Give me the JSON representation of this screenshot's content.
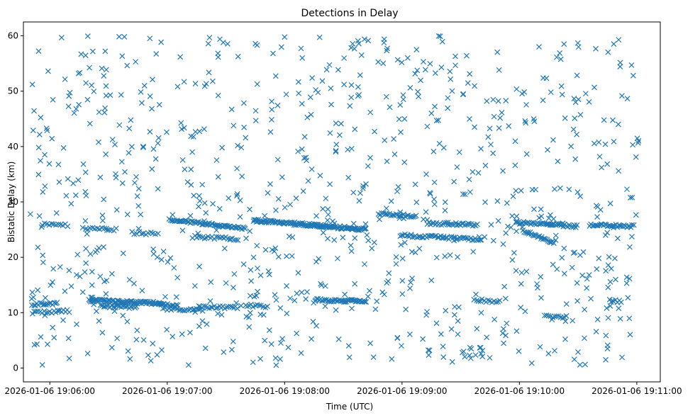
{
  "chart_data": {
    "type": "scatter",
    "title": "Detections in Delay",
    "xlabel": "Time (UTC)",
    "ylabel": "Bistatic Delay (km)",
    "marker": "x",
    "color": "#1f77b4",
    "xaxis_unit": "seconds after 2026-01-06 19:06:00",
    "xlim": [
      -13.5,
      312
    ],
    "ylim": [
      -2.5,
      62.5
    ],
    "x_ticks": [
      {
        "value": 0,
        "label": "2026-01-06 19:06:00"
      },
      {
        "value": 60,
        "label": "2026-01-06 19:07:00"
      },
      {
        "value": 120,
        "label": "2026-01-06 19:08:00"
      },
      {
        "value": 180,
        "label": "2026-01-06 19:09:00"
      },
      {
        "value": 240,
        "label": "2026-01-06 19:10:00"
      },
      {
        "value": 300,
        "label": "2026-01-06 19:11:00"
      }
    ],
    "y_ticks": [
      {
        "value": 0,
        "label": "0"
      },
      {
        "value": 10,
        "label": "10"
      },
      {
        "value": 20,
        "label": "20"
      },
      {
        "value": 30,
        "label": "30"
      },
      {
        "value": 40,
        "label": "40"
      },
      {
        "value": 50,
        "label": "50"
      },
      {
        "value": 60,
        "label": "60"
      }
    ],
    "tracks": [
      {
        "x0": -9,
        "x1": 4,
        "y0": 11.5,
        "y1": 11.7,
        "step": 0.8
      },
      {
        "x0": -9,
        "x1": 10,
        "y0": 10.0,
        "y1": 10.3,
        "step": 1.0
      },
      {
        "x0": -4,
        "x1": 10,
        "y0": 26.0,
        "y1": 25.8,
        "step": 1.2
      },
      {
        "x0": 17,
        "x1": 34,
        "y0": 25.2,
        "y1": 25.0,
        "step": 1.2
      },
      {
        "x0": 20,
        "x1": 57,
        "y0": 12.2,
        "y1": 11.7,
        "step": 0.5
      },
      {
        "x0": 26,
        "x1": 45,
        "y0": 11.2,
        "y1": 11.0,
        "step": 0.8
      },
      {
        "x0": 42,
        "x1": 56,
        "y0": 24.4,
        "y1": 24.3,
        "step": 1.2
      },
      {
        "x0": 56,
        "x1": 66,
        "y0": 11.5,
        "y1": 11.3,
        "step": 0.8
      },
      {
        "x0": 58,
        "x1": 78,
        "y0": 10.7,
        "y1": 10.5,
        "step": 1.0
      },
      {
        "x0": 61,
        "x1": 100,
        "y0": 26.8,
        "y1": 25.2,
        "step": 0.6
      },
      {
        "x0": 73,
        "x1": 96,
        "y0": 23.7,
        "y1": 23.3,
        "step": 1.0
      },
      {
        "x0": 76,
        "x1": 96,
        "y0": 11.0,
        "y1": 10.9,
        "step": 0.9
      },
      {
        "x0": 100,
        "x1": 111,
        "y0": 11.3,
        "y1": 11.1,
        "step": 1.0
      },
      {
        "x0": 104,
        "x1": 162,
        "y0": 26.7,
        "y1": 25.0,
        "step": 0.45
      },
      {
        "x0": 136,
        "x1": 162,
        "y0": 12.3,
        "y1": 12.1,
        "step": 0.6
      },
      {
        "x0": 168,
        "x1": 188,
        "y0": 27.9,
        "y1": 27.4,
        "step": 0.8
      },
      {
        "x0": 179,
        "x1": 221,
        "y0": 24.0,
        "y1": 23.2,
        "step": 0.8
      },
      {
        "x0": 193,
        "x1": 219,
        "y0": 26.2,
        "y1": 25.8,
        "step": 0.8
      },
      {
        "x0": 238,
        "x1": 270,
        "y0": 26.3,
        "y1": 25.6,
        "step": 0.7
      },
      {
        "x0": 242,
        "x1": 258,
        "y0": 24.8,
        "y1": 22.6,
        "step": 0.6
      },
      {
        "x0": 276,
        "x1": 299,
        "y0": 25.8,
        "y1": 25.6,
        "step": 0.7
      },
      {
        "x0": 217,
        "x1": 230,
        "y0": 12.3,
        "y1": 12.0,
        "step": 1.0
      },
      {
        "x0": 253,
        "x1": 264,
        "y0": 9.4,
        "y1": 9.2,
        "step": 1.0
      },
      {
        "x0": 286,
        "x1": 292,
        "y0": 12.2,
        "y1": 12.0,
        "step": 1.0
      }
    ],
    "scatter_noise": {
      "count": 880,
      "x_range": [
        -10,
        301
      ],
      "y_range": [
        0.5,
        60
      ],
      "seed": 20260106
    }
  }
}
